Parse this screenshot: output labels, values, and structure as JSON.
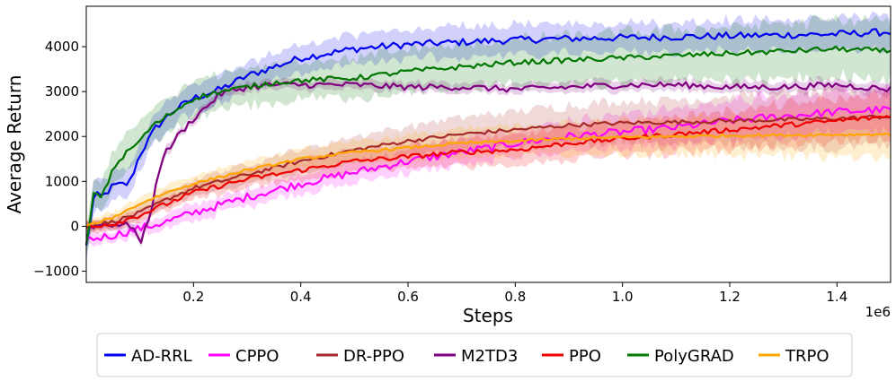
{
  "chart_data": {
    "type": "line",
    "xlabel": "Steps",
    "ylabel": "Average Return",
    "x_scale_label": "1e6",
    "xlim": [
      0.0,
      1.5
    ],
    "ylim": [
      -1250,
      4900
    ],
    "xticks": [
      0.2,
      0.4,
      0.6,
      0.8,
      1.0,
      1.2,
      1.4
    ],
    "xtick_labels": [
      "0.2",
      "0.4",
      "0.6",
      "0.8",
      "1.0",
      "1.2",
      "1.4"
    ],
    "yticks": [
      -1000,
      0,
      1000,
      2000,
      3000,
      4000
    ],
    "ytick_labels": [
      "−1000",
      "0",
      "1000",
      "2000",
      "3000",
      "4000"
    ],
    "grid": false,
    "legend_position": "bottom-center",
    "series": [
      {
        "name": "AD-RRL",
        "color": "#0000ee",
        "points": [
          [
            0.0,
            -450
          ],
          [
            0.015,
            700
          ],
          [
            0.03,
            650
          ],
          [
            0.05,
            900
          ],
          [
            0.08,
            950
          ],
          [
            0.1,
            1600
          ],
          [
            0.13,
            2200
          ],
          [
            0.16,
            2550
          ],
          [
            0.2,
            2850
          ],
          [
            0.25,
            3050
          ],
          [
            0.3,
            3350
          ],
          [
            0.35,
            3550
          ],
          [
            0.4,
            3750
          ],
          [
            0.5,
            3950
          ],
          [
            0.6,
            4050
          ],
          [
            0.7,
            4100
          ],
          [
            0.8,
            4150
          ],
          [
            0.9,
            4180
          ],
          [
            1.0,
            4200
          ],
          [
            1.1,
            4220
          ],
          [
            1.2,
            4240
          ],
          [
            1.3,
            4260
          ],
          [
            1.4,
            4280
          ],
          [
            1.5,
            4330
          ]
        ],
        "band": [
          300,
          350
        ],
        "noise": 80
      },
      {
        "name": "CPPO",
        "color": "#ff00ff",
        "points": [
          [
            0.0,
            -300
          ],
          [
            0.05,
            -200
          ],
          [
            0.1,
            -50
          ],
          [
            0.15,
            100
          ],
          [
            0.2,
            300
          ],
          [
            0.3,
            650
          ],
          [
            0.4,
            950
          ],
          [
            0.5,
            1200
          ],
          [
            0.6,
            1450
          ],
          [
            0.7,
            1650
          ],
          [
            0.8,
            1850
          ],
          [
            0.9,
            2000
          ],
          [
            1.0,
            2100
          ],
          [
            1.1,
            2200
          ],
          [
            1.2,
            2350
          ],
          [
            1.3,
            2450
          ],
          [
            1.4,
            2550
          ],
          [
            1.5,
            2600
          ]
        ],
        "band": [
          120,
          500
        ],
        "noise": 90
      },
      {
        "name": "DR-PPO",
        "color": "#a52a2a",
        "points": [
          [
            0.0,
            0
          ],
          [
            0.05,
            100
          ],
          [
            0.1,
            300
          ],
          [
            0.15,
            600
          ],
          [
            0.2,
            850
          ],
          [
            0.3,
            1150
          ],
          [
            0.4,
            1450
          ],
          [
            0.5,
            1700
          ],
          [
            0.6,
            1900
          ],
          [
            0.7,
            2050
          ],
          [
            0.8,
            2150
          ],
          [
            0.9,
            2250
          ],
          [
            1.0,
            2300
          ],
          [
            1.1,
            2320
          ],
          [
            1.2,
            2350
          ],
          [
            1.3,
            2370
          ],
          [
            1.4,
            2400
          ],
          [
            1.5,
            2450
          ]
        ],
        "band": [
          120,
          650
        ],
        "noise": 45
      },
      {
        "name": "M2TD3",
        "color": "#800080",
        "points": [
          [
            0.0,
            0
          ],
          [
            0.05,
            50
          ],
          [
            0.09,
            0
          ],
          [
            0.1,
            -450
          ],
          [
            0.12,
            300
          ],
          [
            0.14,
            1500
          ],
          [
            0.17,
            2000
          ],
          [
            0.2,
            2400
          ],
          [
            0.25,
            2950
          ],
          [
            0.3,
            3100
          ],
          [
            0.35,
            3150
          ],
          [
            0.4,
            3150
          ],
          [
            0.5,
            3150
          ],
          [
            0.6,
            3100
          ],
          [
            0.7,
            3100
          ],
          [
            0.8,
            3050
          ],
          [
            0.9,
            3100
          ],
          [
            1.0,
            3150
          ],
          [
            1.1,
            3150
          ],
          [
            1.2,
            3100
          ],
          [
            1.3,
            3100
          ],
          [
            1.4,
            3150
          ],
          [
            1.5,
            3050
          ]
        ],
        "band": [
          100,
          130
        ],
        "noise": 70
      },
      {
        "name": "PPO",
        "color": "#ee0000",
        "points": [
          [
            0.0,
            0
          ],
          [
            0.05,
            50
          ],
          [
            0.1,
            250
          ],
          [
            0.15,
            500
          ],
          [
            0.2,
            750
          ],
          [
            0.3,
            1050
          ],
          [
            0.4,
            1250
          ],
          [
            0.5,
            1450
          ],
          [
            0.6,
            1550
          ],
          [
            0.7,
            1650
          ],
          [
            0.8,
            1700
          ],
          [
            0.9,
            1850
          ],
          [
            1.0,
            1950
          ],
          [
            1.1,
            2050
          ],
          [
            1.2,
            2150
          ],
          [
            1.3,
            2250
          ],
          [
            1.4,
            2350
          ],
          [
            1.5,
            2450
          ]
        ],
        "band": [
          120,
          500
        ],
        "noise": 55
      },
      {
        "name": "PolyGRAD",
        "color": "#007700",
        "points": [
          [
            0.0,
            -450
          ],
          [
            0.015,
            800
          ],
          [
            0.03,
            650
          ],
          [
            0.05,
            1300
          ],
          [
            0.08,
            1700
          ],
          [
            0.1,
            1900
          ],
          [
            0.12,
            2200
          ],
          [
            0.15,
            2450
          ],
          [
            0.2,
            2850
          ],
          [
            0.25,
            3000
          ],
          [
            0.3,
            3100
          ],
          [
            0.35,
            3200
          ],
          [
            0.4,
            3250
          ],
          [
            0.5,
            3300
          ],
          [
            0.6,
            3450
          ],
          [
            0.7,
            3550
          ],
          [
            0.8,
            3650
          ],
          [
            0.9,
            3700
          ],
          [
            1.0,
            3750
          ],
          [
            1.1,
            3800
          ],
          [
            1.2,
            3850
          ],
          [
            1.3,
            3900
          ],
          [
            1.4,
            3950
          ],
          [
            1.5,
            3900
          ]
        ],
        "band": [
          350,
          650
        ],
        "noise": 60
      },
      {
        "name": "TRPO",
        "color": "#ffa500",
        "points": [
          [
            0.0,
            0
          ],
          [
            0.05,
            200
          ],
          [
            0.1,
            500
          ],
          [
            0.15,
            750
          ],
          [
            0.2,
            950
          ],
          [
            0.3,
            1250
          ],
          [
            0.4,
            1500
          ],
          [
            0.5,
            1650
          ],
          [
            0.6,
            1750
          ],
          [
            0.7,
            1850
          ],
          [
            0.8,
            1900
          ],
          [
            0.9,
            1950
          ],
          [
            1.0,
            1980
          ],
          [
            1.1,
            2000
          ],
          [
            1.2,
            2020
          ],
          [
            1.3,
            2030
          ],
          [
            1.4,
            2040
          ],
          [
            1.5,
            2050
          ]
        ],
        "band": [
          120,
          520
        ],
        "noise": 30
      }
    ]
  }
}
